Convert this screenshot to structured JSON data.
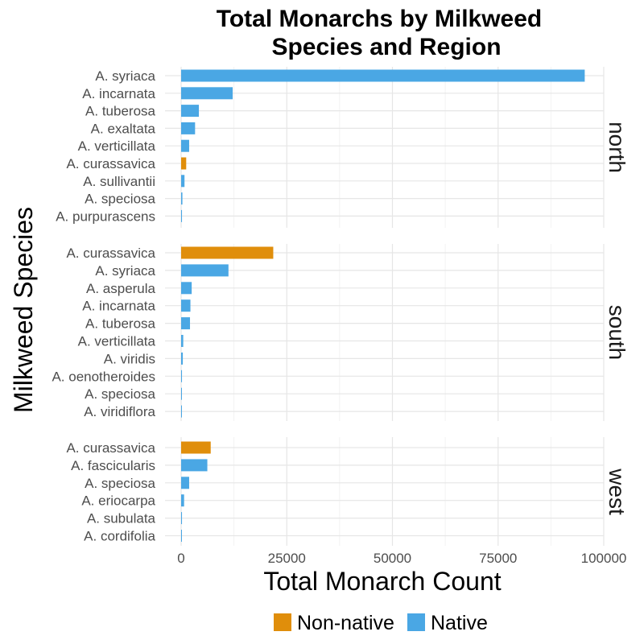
{
  "chart_data": {
    "type": "bar",
    "orientation": "horizontal",
    "title": "Total Monarchs by Milkweed Species and Region",
    "xlabel": "Total Monarch Count",
    "ylabel": "Milkweed Species",
    "xlim": [
      0,
      100000
    ],
    "x_ticks": [
      "0",
      "25000",
      "50000",
      "75000",
      "100000"
    ],
    "grid": true,
    "legend": {
      "position": "bottom",
      "entries": [
        {
          "name": "Non-native",
          "color": "#E08E0B"
        },
        {
          "name": "Native",
          "color": "#4AA7E4"
        }
      ]
    },
    "panels": [
      {
        "region": "north",
        "bars": [
          {
            "species": "A. syriaca",
            "value": 95500,
            "group": "Native"
          },
          {
            "species": "A. incarnata",
            "value": 12200,
            "group": "Native"
          },
          {
            "species": "A. tuberosa",
            "value": 4200,
            "group": "Native"
          },
          {
            "species": "A. exaltata",
            "value": 3300,
            "group": "Native"
          },
          {
            "species": "A. verticillata",
            "value": 1900,
            "group": "Native"
          },
          {
            "species": "A. curassavica",
            "value": 1200,
            "group": "Non-native"
          },
          {
            "species": "A. sullivantii",
            "value": 800,
            "group": "Native"
          },
          {
            "species": "A. speciosa",
            "value": 300,
            "group": "Native"
          },
          {
            "species": "A. purpurascens",
            "value": 200,
            "group": "Native"
          }
        ]
      },
      {
        "region": "south",
        "bars": [
          {
            "species": "A. curassavica",
            "value": 21800,
            "group": "Non-native"
          },
          {
            "species": "A. syriaca",
            "value": 11200,
            "group": "Native"
          },
          {
            "species": "A. asperula",
            "value": 2500,
            "group": "Native"
          },
          {
            "species": "A. incarnata",
            "value": 2200,
            "group": "Native"
          },
          {
            "species": "A. tuberosa",
            "value": 2100,
            "group": "Native"
          },
          {
            "species": "A. verticillata",
            "value": 500,
            "group": "Native"
          },
          {
            "species": "A. viridis",
            "value": 400,
            "group": "Native"
          },
          {
            "species": "A. oenotheroides",
            "value": 200,
            "group": "Native"
          },
          {
            "species": "A. speciosa",
            "value": 150,
            "group": "Native"
          },
          {
            "species": "A. viridiflora",
            "value": 50,
            "group": "Native"
          }
        ]
      },
      {
        "region": "west",
        "bars": [
          {
            "species": "A. curassavica",
            "value": 7000,
            "group": "Non-native"
          },
          {
            "species": "A. fascicularis",
            "value": 6200,
            "group": "Native"
          },
          {
            "species": "A. speciosa",
            "value": 1900,
            "group": "Native"
          },
          {
            "species": "A. eriocarpa",
            "value": 700,
            "group": "Native"
          },
          {
            "species": "A. subulata",
            "value": 200,
            "group": "Native"
          },
          {
            "species": "A. cordifolia",
            "value": 100,
            "group": "Native"
          }
        ]
      }
    ]
  }
}
